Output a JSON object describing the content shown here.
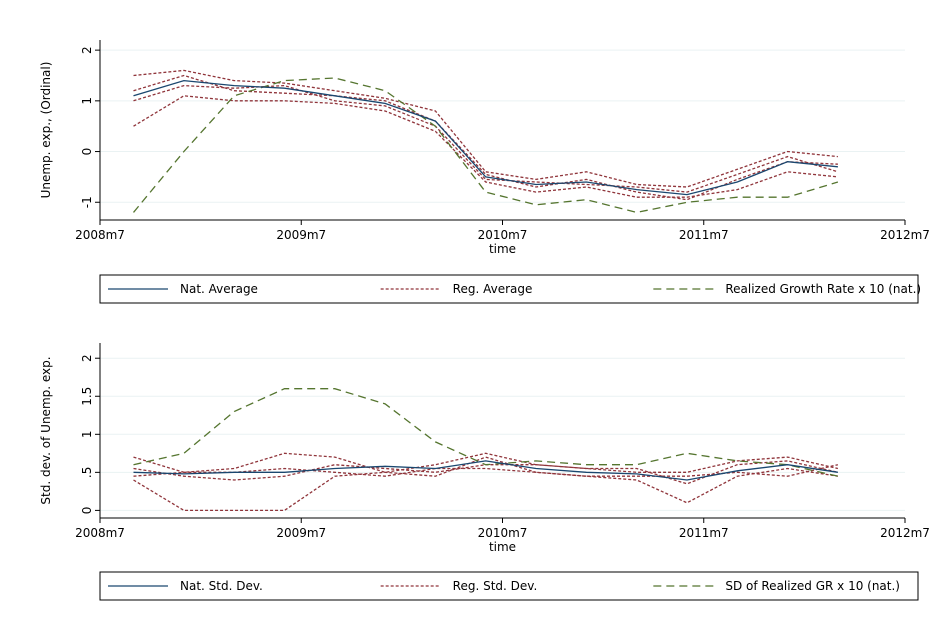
{
  "chart_data": [
    {
      "type": "line",
      "ylabel": "Unemp. exp., (Ordinal)",
      "xlabel": "time",
      "x": [
        584,
        587,
        590,
        593,
        596,
        599,
        602,
        605,
        608,
        611,
        614,
        617,
        620,
        623,
        626
      ],
      "xlim": [
        582,
        630
      ],
      "xticks": [
        {
          "value": 582,
          "label": "2008m7"
        },
        {
          "value": 594,
          "label": "2009m7"
        },
        {
          "value": 606,
          "label": "2010m7"
        },
        {
          "value": 618,
          "label": "2011m7"
        },
        {
          "value": 630,
          "label": "2012m7"
        }
      ],
      "ylim": [
        -1.35,
        2.2
      ],
      "yticks": [
        -1,
        0,
        1,
        2
      ],
      "grid": true,
      "series": [
        {
          "name": "Nat. Average",
          "color": "#1a476f",
          "dash": "none",
          "values": [
            1.1,
            1.4,
            1.3,
            1.25,
            1.1,
            0.95,
            0.6,
            -0.5,
            -0.65,
            -0.6,
            -0.75,
            -0.85,
            -0.6,
            -0.2,
            -0.3
          ]
        },
        {
          "name": "Reg. Average",
          "color": "#90353b",
          "dash": "3,2",
          "values": [
            [
              1.5,
              1.6,
              1.4,
              1.35,
              1.2,
              1.05,
              0.8,
              -0.4,
              -0.55,
              -0.4,
              -0.65,
              -0.7,
              -0.35,
              0.0,
              -0.1
            ],
            [
              0.5,
              1.1,
              1.0,
              1.0,
              0.95,
              0.8,
              0.4,
              -0.6,
              -0.8,
              -0.7,
              -0.9,
              -0.9,
              -0.75,
              -0.4,
              -0.5
            ],
            [
              1.2,
              1.5,
              1.2,
              1.15,
              1.1,
              1.0,
              0.6,
              -0.45,
              -0.7,
              -0.55,
              -0.8,
              -0.95,
              -0.55,
              -0.2,
              -0.25
            ],
            [
              1.0,
              1.3,
              1.25,
              1.3,
              1.0,
              0.9,
              0.5,
              -0.55,
              -0.6,
              -0.65,
              -0.7,
              -0.8,
              -0.45,
              -0.1,
              -0.4
            ]
          ]
        },
        {
          "name": "Realized Growth Rate x 10 (nat.)",
          "color": "#55752f",
          "dash": "8,5",
          "values": [
            -1.2,
            0.0,
            1.1,
            1.4,
            1.45,
            1.2,
            0.5,
            -0.8,
            -1.05,
            -0.95,
            -1.2,
            -1.0,
            -0.9,
            -0.9,
            -0.6
          ]
        }
      ]
    },
    {
      "type": "line",
      "ylabel": "Std. dev. of Unemp. exp.",
      "xlabel": "time",
      "x": [
        584,
        587,
        590,
        593,
        596,
        599,
        602,
        605,
        608,
        611,
        614,
        617,
        620,
        623,
        626
      ],
      "xlim": [
        582,
        630
      ],
      "xticks": [
        {
          "value": 582,
          "label": "2008m7"
        },
        {
          "value": 594,
          "label": "2009m7"
        },
        {
          "value": 606,
          "label": "2010m7"
        },
        {
          "value": 618,
          "label": "2011m7"
        },
        {
          "value": 630,
          "label": "2012m7"
        }
      ],
      "ylim": [
        -0.1,
        2.2
      ],
      "yticks": [
        0,
        {
          "value": 0.5,
          "label": ".5"
        },
        1,
        1.5,
        2
      ],
      "grid": true,
      "series": [
        {
          "name": "Nat. Std. Dev.",
          "color": "#1a476f",
          "dash": "none",
          "values": [
            0.5,
            0.48,
            0.5,
            0.5,
            0.55,
            0.58,
            0.55,
            0.65,
            0.55,
            0.5,
            0.48,
            0.4,
            0.52,
            0.6,
            0.5
          ]
        },
        {
          "name": "Reg. Std. Dev.",
          "color": "#90353b",
          "dash": "3,2",
          "values": [
            [
              0.7,
              0.5,
              0.55,
              0.75,
              0.7,
              0.5,
              0.6,
              0.75,
              0.6,
              0.55,
              0.5,
              0.5,
              0.65,
              0.7,
              0.55
            ],
            [
              0.4,
              0.0,
              0.0,
              0.0,
              0.45,
              0.5,
              0.45,
              0.7,
              0.5,
              0.45,
              0.4,
              0.1,
              0.45,
              0.55,
              0.45
            ],
            [
              0.55,
              0.45,
              0.4,
              0.45,
              0.6,
              0.55,
              0.5,
              0.6,
              0.6,
              0.55,
              0.55,
              0.35,
              0.6,
              0.65,
              0.5
            ],
            [
              0.45,
              0.5,
              0.5,
              0.55,
              0.5,
              0.45,
              0.55,
              0.55,
              0.5,
              0.45,
              0.45,
              0.45,
              0.5,
              0.45,
              0.6
            ]
          ]
        },
        {
          "name": "SD of Realized GR x 10 (nat.)",
          "color": "#55752f",
          "dash": "8,5",
          "values": [
            0.6,
            0.75,
            1.3,
            1.6,
            1.6,
            1.4,
            0.9,
            0.6,
            0.65,
            0.6,
            0.6,
            0.75,
            0.65,
            0.6,
            0.45
          ]
        }
      ]
    }
  ]
}
